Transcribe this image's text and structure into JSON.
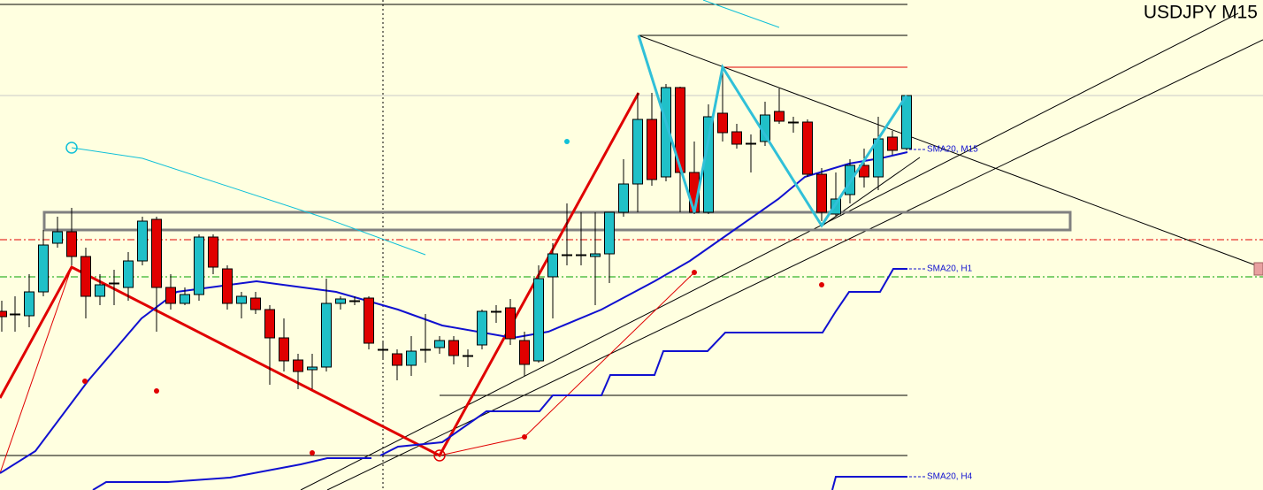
{
  "header": {
    "symbol": "USDJPY M15"
  },
  "indicators": [
    "SMA20, M15",
    "SMA20, H1",
    "SMA20, H4"
  ]
}
